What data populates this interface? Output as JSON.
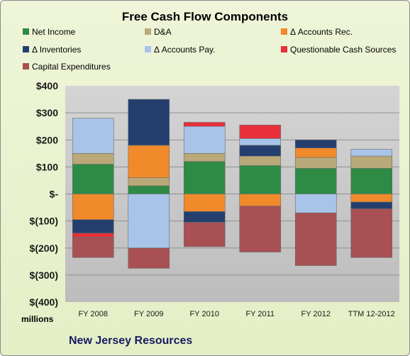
{
  "chart_data": {
    "type": "bar",
    "stacked": true,
    "title": "Free Cash Flow Components",
    "company": "New Jersey Resources",
    "units": "millions",
    "categories": [
      "FY 2008",
      "FY 2009",
      "FY 2010",
      "FY 2011",
      "FY 2012",
      "TTM 12-2012"
    ],
    "ylim": [
      -400,
      400
    ],
    "yticks": [
      400,
      300,
      200,
      100,
      0,
      -100,
      -200,
      -300,
      -400
    ],
    "ytick_labels": [
      "$400",
      "$300",
      "$200",
      "$100",
      "$-",
      "$(100)",
      "$(200)",
      "$(300)",
      "$(400)"
    ],
    "grid": true,
    "legend_position": "top",
    "series": [
      {
        "name": "Net Income",
        "color": "#2e8b45",
        "values": [
          110,
          30,
          120,
          105,
          95,
          95
        ]
      },
      {
        "name": "D&A",
        "color": "#b9a878",
        "values": [
          40,
          30,
          30,
          35,
          40,
          45
        ]
      },
      {
        "name": "Δ Accounts Rec.",
        "color": "#f08a2a",
        "values": [
          -95,
          120,
          -65,
          -45,
          35,
          -30
        ]
      },
      {
        "name": "Δ Inventories",
        "color": "#243f6e",
        "values": [
          -50,
          170,
          -40,
          40,
          30,
          -25
        ]
      },
      {
        "name": "Δ Accounts Pay.",
        "color": "#a8c4e8",
        "values": [
          130,
          -200,
          100,
          25,
          -70,
          25
        ]
      },
      {
        "name": "Questionable Cash Sources",
        "color": "#e8303a",
        "values": [
          -15,
          0,
          15,
          50,
          0,
          0
        ]
      },
      {
        "name": "Capital Expenditures",
        "color": "#a85054",
        "values": [
          -75,
          -75,
          -90,
          -170,
          -195,
          -180
        ]
      }
    ]
  }
}
